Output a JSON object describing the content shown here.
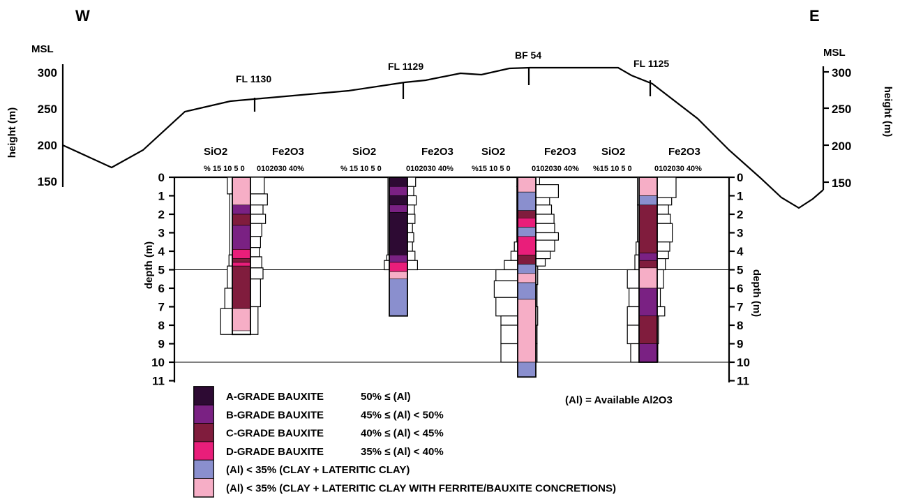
{
  "header": {
    "west": "W",
    "east": "E"
  },
  "height_axis": {
    "msl_label": "MSL",
    "title": "height (m)",
    "ticks": [
      "300",
      "250",
      "200",
      "150"
    ]
  },
  "topography_profile": [
    [
      90,
      208
    ],
    [
      160,
      240
    ],
    [
      205,
      215
    ],
    [
      265,
      160
    ],
    [
      330,
      145
    ],
    [
      500,
      130
    ],
    [
      580,
      118
    ],
    [
      610,
      115
    ],
    [
      660,
      105
    ],
    [
      690,
      107
    ],
    [
      730,
      98
    ],
    [
      760,
      97
    ],
    [
      886,
      97
    ],
    [
      905,
      108
    ],
    [
      935,
      120
    ],
    [
      1000,
      170
    ],
    [
      1045,
      215
    ],
    [
      1090,
      255
    ],
    [
      1120,
      283
    ],
    [
      1145,
      298
    ],
    [
      1165,
      285
    ],
    [
      1180,
      272
    ]
  ],
  "depth_axis": {
    "title": "depth (m)",
    "ticks": [
      "0",
      "1",
      "2",
      "3",
      "4",
      "5",
      "6",
      "7",
      "8",
      "9",
      "10",
      "11"
    ],
    "reference_lines_m": [
      5,
      10
    ]
  },
  "boreholes": [
    {
      "well": "FL 1130",
      "sio2_label": "SiO2",
      "fe2o3_label": "Fe2O3",
      "sio2_scale": "% 15 10 5 0",
      "fe2o3_scale": "0102030 40%",
      "total_depth_m": 8.5,
      "sio2": [
        [
          0,
          0.9,
          3
        ],
        [
          0.9,
          4.2,
          1.5
        ],
        [
          4.2,
          4.8,
          2
        ],
        [
          4.8,
          6,
          3
        ],
        [
          6,
          7.1,
          4.5
        ],
        [
          7.1,
          8.5,
          7
        ]
      ],
      "fe2o3": [
        [
          0,
          0.9,
          22
        ],
        [
          0.9,
          1.5,
          27
        ],
        [
          1.5,
          2,
          20
        ],
        [
          2,
          2.5,
          24
        ],
        [
          2.5,
          3.2,
          18
        ],
        [
          3.2,
          3.8,
          16
        ],
        [
          3.8,
          4.3,
          14
        ],
        [
          4.3,
          4.9,
          18
        ],
        [
          4.9,
          5.5,
          20
        ],
        [
          5.5,
          7,
          16
        ],
        [
          7,
          8.5,
          12
        ]
      ],
      "grades": [
        [
          0,
          1.5,
          "F"
        ],
        [
          1.5,
          2,
          "B"
        ],
        [
          2,
          2.6,
          "C"
        ],
        [
          2.6,
          3.9,
          "B"
        ],
        [
          3.9,
          4.4,
          "D"
        ],
        [
          4.4,
          4.6,
          "C"
        ],
        [
          4.6,
          4.8,
          "D"
        ],
        [
          4.8,
          7.1,
          "C"
        ],
        [
          7.1,
          8.3,
          "F"
        ]
      ]
    },
    {
      "well": "FL 1129",
      "sio2_label": "SiO2",
      "fe2o3_label": "Fe2O3",
      "sio2_scale": "% 15 10 5 0",
      "fe2o3_scale": "0102030 40%",
      "total_depth_m": 7.5,
      "sio2": [
        [
          0,
          4.2,
          0.8
        ],
        [
          4.2,
          4.5,
          1.5
        ],
        [
          4.5,
          5,
          3
        ]
      ],
      "fe2o3": [
        [
          0,
          0.5,
          13
        ],
        [
          0.5,
          1,
          10
        ],
        [
          1,
          1.5,
          14
        ],
        [
          1.5,
          2,
          11
        ],
        [
          2,
          2.5,
          12
        ],
        [
          2.5,
          3,
          8
        ],
        [
          3,
          3.5,
          10
        ],
        [
          3.5,
          4,
          8
        ],
        [
          4,
          4.5,
          12
        ],
        [
          4.5,
          5,
          16
        ]
      ],
      "grades": [
        [
          0,
          0.5,
          "A"
        ],
        [
          0.5,
          1,
          "B"
        ],
        [
          1,
          1.5,
          "A"
        ],
        [
          1.5,
          1.9,
          "B"
        ],
        [
          1.9,
          4.2,
          "A"
        ],
        [
          4.2,
          4.6,
          "B"
        ],
        [
          4.6,
          5.1,
          "D"
        ],
        [
          5.1,
          5.5,
          "F"
        ],
        [
          5.5,
          7.5,
          "L"
        ]
      ]
    },
    {
      "well": "BF 54",
      "sio2_label": "SiO2",
      "fe2o3_label": "Fe2O3",
      "sio2_scale": "%15 10 5 0",
      "fe2o3_scale": "0102030 40%",
      "total_depth_m": 10.8,
      "sio2": [
        [
          0,
          0.5,
          0.5
        ],
        [
          0.5,
          3.5,
          0.5
        ],
        [
          3.5,
          4,
          2
        ],
        [
          4,
          4.5,
          4
        ],
        [
          4.5,
          5,
          8
        ],
        [
          5,
          5.6,
          13
        ],
        [
          5.6,
          6.5,
          14
        ],
        [
          6.5,
          7.5,
          13
        ],
        [
          7.5,
          8,
          10
        ],
        [
          8,
          9,
          10
        ],
        [
          9,
          10,
          10
        ]
      ],
      "fe2o3": [
        [
          0,
          0.4,
          6
        ],
        [
          0.4,
          1.1,
          36
        ],
        [
          1.1,
          1.5,
          22
        ],
        [
          1.5,
          2,
          25
        ],
        [
          2,
          2.5,
          29
        ],
        [
          2.5,
          3,
          30
        ],
        [
          3,
          3.4,
          36
        ],
        [
          3.4,
          4,
          30
        ],
        [
          4,
          4.4,
          23
        ],
        [
          4.4,
          4.8,
          15
        ],
        [
          4.8,
          5.8,
          3
        ],
        [
          5.8,
          7,
          2
        ],
        [
          7,
          8,
          3
        ],
        [
          8,
          9,
          2
        ],
        [
          9,
          10,
          2
        ]
      ],
      "grades": [
        [
          0,
          0.8,
          "F"
        ],
        [
          0.8,
          1.8,
          "L"
        ],
        [
          1.8,
          2.2,
          "C"
        ],
        [
          2.2,
          2.7,
          "D"
        ],
        [
          2.7,
          3.2,
          "L"
        ],
        [
          3.2,
          4.2,
          "D"
        ],
        [
          4.2,
          4.7,
          "C"
        ],
        [
          4.7,
          5.2,
          "L"
        ],
        [
          5.2,
          5.7,
          "F"
        ],
        [
          5.7,
          6.6,
          "L"
        ],
        [
          6.6,
          10,
          "F"
        ],
        [
          10,
          10.8,
          "L"
        ]
      ]
    },
    {
      "well": "FL 1125",
      "sio2_label": "SiO2",
      "fe2o3_label": "Fe2O3",
      "sio2_scale": "%15 10 5 0",
      "fe2o3_scale": "0102030 40%",
      "total_depth_m": 10,
      "sio2": [
        [
          0,
          1.5,
          1
        ],
        [
          1.5,
          3.5,
          1
        ],
        [
          3.5,
          4.2,
          1.8
        ],
        [
          4.2,
          5,
          2.5
        ],
        [
          5,
          6,
          7
        ],
        [
          6,
          7,
          6
        ],
        [
          7,
          8,
          7
        ],
        [
          8,
          9,
          7
        ],
        [
          9,
          10,
          5
        ]
      ],
      "fe2o3": [
        [
          0,
          1.1,
          30
        ],
        [
          1.1,
          1.5,
          23
        ],
        [
          1.5,
          2,
          18
        ],
        [
          2,
          2.5,
          21
        ],
        [
          2.5,
          3,
          22
        ],
        [
          2.5,
          3.5,
          24
        ],
        [
          3.5,
          4,
          20
        ],
        [
          4,
          4.4,
          18
        ],
        [
          4.4,
          5,
          13
        ],
        [
          5,
          6,
          10
        ],
        [
          6,
          7,
          5
        ],
        [
          7,
          7.5,
          12
        ],
        [
          7.5,
          9,
          2
        ],
        [
          9,
          10,
          1
        ]
      ],
      "grades": [
        [
          0,
          1,
          "F"
        ],
        [
          1,
          1.5,
          "L"
        ],
        [
          1.5,
          4.1,
          "C"
        ],
        [
          4.1,
          4.5,
          "B"
        ],
        [
          4.5,
          4.9,
          "C"
        ],
        [
          4.9,
          6,
          "F"
        ],
        [
          6,
          7.5,
          "B"
        ],
        [
          7.5,
          9,
          "C"
        ],
        [
          9,
          10,
          "B"
        ]
      ]
    }
  ],
  "legend": {
    "items": [
      {
        "key": "A",
        "color": "#2d0a33",
        "label": "A-GRADE BAUXITE",
        "range": "50% ≤ (Al)"
      },
      {
        "key": "B",
        "color": "#7a2183",
        "label": "B-GRADE BAUXITE",
        "range": "45% ≤ (Al) < 50%"
      },
      {
        "key": "C",
        "color": "#801c3d",
        "label": "C-GRADE BAUXITE",
        "range": "40% ≤ (Al) < 45%"
      },
      {
        "key": "D",
        "color": "#e91e7a",
        "label": "D-GRADE BAUXITE",
        "range": "35% ≤ (Al) < 40%"
      },
      {
        "key": "L",
        "color": "#8a8fce",
        "label": "(Al) < 35% (CLAY + LATERITIC CLAY)",
        "range": ""
      },
      {
        "key": "F",
        "color": "#f6aec6",
        "label": "(Al) < 35% (CLAY + LATERITIC CLAY WITH FERRITE/BAUXITE CONCRETIONS)",
        "range": ""
      }
    ],
    "note": "(Al) = Available Al2O3"
  }
}
